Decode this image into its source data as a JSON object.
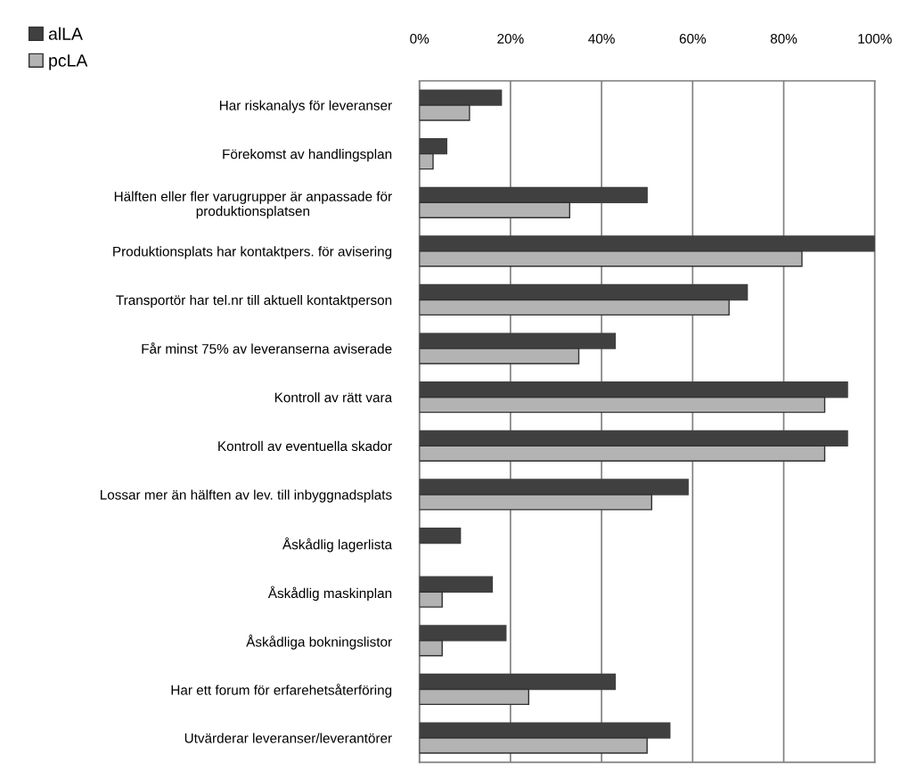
{
  "chart_data": {
    "type": "bar",
    "orientation": "horizontal",
    "categories": [
      "Har riskanalys för leveranser",
      "Förekomst av handlingsplan",
      "Hälften eller fler varugrupper är anpassade för\nproduktionsplatsen",
      "Produktionsplats har kontaktpers. för avisering",
      "Transportör har tel.nr till aktuell kontaktperson",
      "Får minst 75% av leveranserna aviserade",
      "Kontroll av rätt vara",
      "Kontroll av eventuella skador",
      "Lossar mer än hälften av lev. till inbyggnadsplats",
      "Åskådlig lagerlista",
      "Åskådlig maskinplan",
      "Åskådliga bokningslistor",
      "Har ett forum för erfarehetsåterföring",
      "Utvärderar leveranser/leverantörer"
    ],
    "series": [
      {
        "name": "alLA",
        "color": "#404040",
        "values": [
          18,
          6,
          50,
          100,
          72,
          43,
          94,
          94,
          59,
          9,
          16,
          19,
          43,
          55
        ]
      },
      {
        "name": "pcLA",
        "color": "#b3b3b3",
        "values": [
          11,
          3,
          33,
          84,
          68,
          35,
          89,
          89,
          51,
          0,
          5,
          5,
          24,
          50
        ]
      }
    ],
    "xlim": [
      0,
      100
    ],
    "xticks": [
      {
        "value": 0,
        "label": "0%"
      },
      {
        "value": 20,
        "label": "20%"
      },
      {
        "value": 40,
        "label": "40%"
      },
      {
        "value": 60,
        "label": "60%"
      },
      {
        "value": 80,
        "label": "80%"
      },
      {
        "value": 100,
        "label": "100%"
      }
    ],
    "grid": "x",
    "legend": "top left"
  }
}
